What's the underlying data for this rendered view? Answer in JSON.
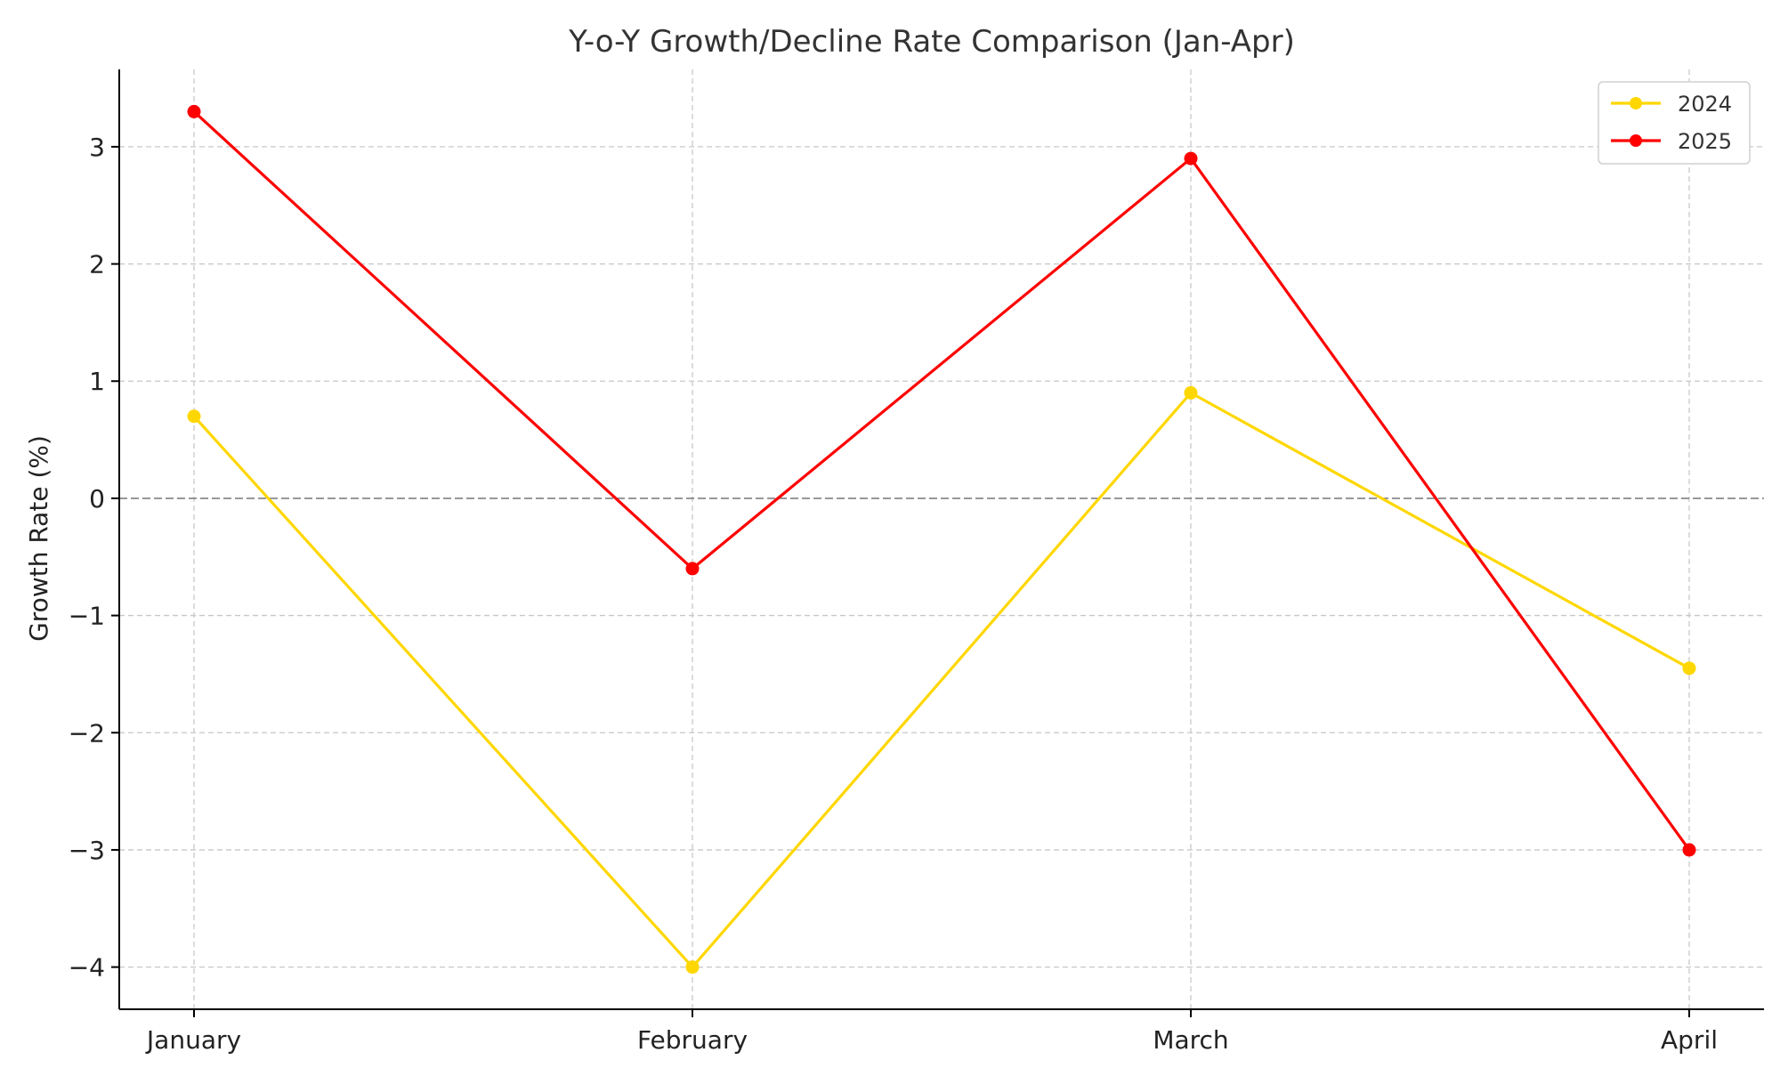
{
  "chart_data": {
    "type": "line",
    "title": "Y-o-Y Growth/Decline Rate Comparison (Jan-Apr)",
    "xlabel": "",
    "ylabel": "Growth Rate (%)",
    "categories": [
      "January",
      "February",
      "March",
      "April"
    ],
    "series": [
      {
        "name": "2024",
        "color": "#FFD700",
        "values": [
          0.7,
          -4.0,
          0.9,
          -1.45
        ]
      },
      {
        "name": "2025",
        "color": "#FF0000",
        "values": [
          3.3,
          -0.6,
          2.9,
          -3.0
        ]
      }
    ],
    "ylim": [
      -4.36,
      3.66
    ],
    "yticks": [
      -4,
      -3,
      -2,
      -1,
      0,
      1,
      2,
      3
    ],
    "ytick_labels": [
      "−4",
      "−3",
      "−2",
      "−1",
      "0",
      "1",
      "2",
      "3"
    ],
    "zero_line": true,
    "grid": true,
    "legend_position": "top-right"
  }
}
